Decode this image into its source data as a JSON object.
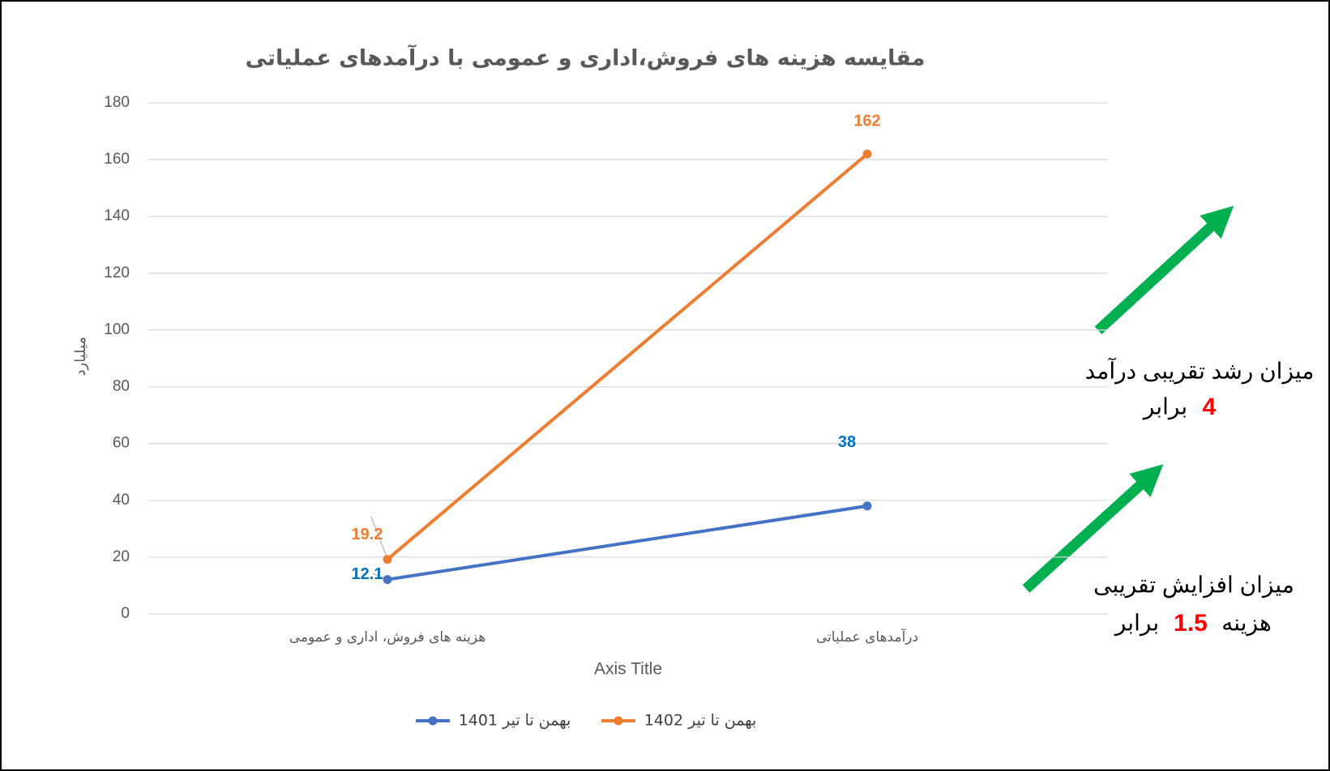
{
  "chart_data": {
    "type": "line",
    "title": "مقایسه هزینه های فروش،اداری و عمومی با درآمدهای عملیاتی",
    "categories": [
      "هزینه های فروش، اداری و عمومی",
      "درآمدهای عملیاتی"
    ],
    "series": [
      {
        "name": "بهمن تا تیر 1401",
        "color": "#4472c4",
        "values": [
          12.1,
          38
        ]
      },
      {
        "name": "بهمن تا تیر 1402",
        "color": "#ed7d31",
        "values": [
          19.2,
          162
        ]
      }
    ],
    "ylim": [
      0,
      180
    ],
    "yticks": [
      0,
      20,
      40,
      60,
      80,
      100,
      120,
      140,
      160,
      180
    ],
    "grid": true,
    "x_label": "Axis Title",
    "y_label": "میلیارد",
    "legend": "bottom",
    "annotations": [
      {
        "line1": "میزان رشد تقریبی درآمد",
        "highlight": "4",
        "line2": "برابر"
      },
      {
        "line1": "میزان افزایش تقریبی",
        "prefix": "هزینه",
        "highlight": "1.5",
        "line2": "برابر"
      }
    ]
  }
}
